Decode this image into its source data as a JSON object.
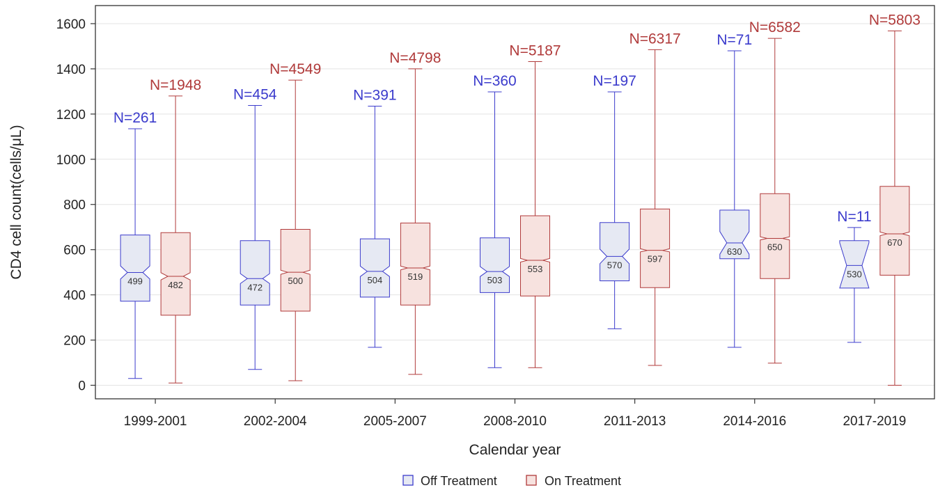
{
  "chart_data": {
    "type": "box",
    "xlabel": "Calendar year",
    "ylabel": "CD4 cell count(cells/μL)",
    "ylim": [
      -60,
      1680
    ],
    "yticks": [
      0,
      200,
      400,
      600,
      800,
      1000,
      1200,
      1400,
      1600
    ],
    "grid": true,
    "legend_position": "bottom",
    "categories": [
      "1999-2001",
      "2002-2004",
      "2005-2007",
      "2008-2010",
      "2011-2013",
      "2014-2016",
      "2017-2019"
    ],
    "series": [
      {
        "name": "Off Treatment",
        "color": "#3b3bcc",
        "fill": "#e6e9f3",
        "n_labels": [
          "N=261",
          "N=454",
          "N=391",
          "N=360",
          "N=197",
          "N=71",
          "N=11"
        ],
        "median_labels": [
          "499",
          "472",
          "504",
          "503",
          "570",
          "630",
          "530"
        ],
        "boxes": [
          {
            "min": 30,
            "q1": 372,
            "median": 499,
            "q3": 665,
            "max": 1135,
            "notch_low": 470,
            "notch_high": 528
          },
          {
            "min": 70,
            "q1": 355,
            "median": 472,
            "q3": 640,
            "max": 1238,
            "notch_low": 450,
            "notch_high": 494
          },
          {
            "min": 168,
            "q1": 390,
            "median": 504,
            "q3": 648,
            "max": 1235,
            "notch_low": 481,
            "notch_high": 527
          },
          {
            "min": 78,
            "q1": 410,
            "median": 503,
            "q3": 652,
            "max": 1298,
            "notch_low": 481,
            "notch_high": 525
          },
          {
            "min": 250,
            "q1": 462,
            "median": 570,
            "q3": 720,
            "max": 1298,
            "notch_low": 538,
            "notch_high": 602
          },
          {
            "min": 168,
            "q1": 560,
            "median": 630,
            "q3": 775,
            "max": 1480,
            "notch_low": 580,
            "notch_high": 680
          },
          {
            "min": 190,
            "q1": 430,
            "median": 530,
            "q3": 640,
            "max": 698,
            "notch_low": 430,
            "notch_high": 630
          }
        ]
      },
      {
        "name": "On Treatment",
        "color": "#b03a3a",
        "fill": "#f7e2df",
        "n_labels": [
          "N=1948",
          "N=4549",
          "N=4798",
          "N=5187",
          "N=6317",
          "N=6582",
          "N=5803"
        ],
        "median_labels": [
          "482",
          "500",
          "519",
          "553",
          "597",
          "650",
          "670"
        ],
        "boxes": [
          {
            "min": 10,
            "q1": 310,
            "median": 482,
            "q3": 675,
            "max": 1280,
            "notch_low": 466,
            "notch_high": 498
          },
          {
            "min": 20,
            "q1": 328,
            "median": 500,
            "q3": 690,
            "max": 1350,
            "notch_low": 491,
            "notch_high": 509
          },
          {
            "min": 48,
            "q1": 355,
            "median": 519,
            "q3": 718,
            "max": 1400,
            "notch_low": 511,
            "notch_high": 527
          },
          {
            "min": 78,
            "q1": 395,
            "median": 553,
            "q3": 750,
            "max": 1432,
            "notch_low": 545,
            "notch_high": 561
          },
          {
            "min": 88,
            "q1": 432,
            "median": 597,
            "q3": 780,
            "max": 1485,
            "notch_low": 590,
            "notch_high": 604
          },
          {
            "min": 98,
            "q1": 472,
            "median": 650,
            "q3": 848,
            "max": 1535,
            "notch_low": 643,
            "notch_high": 657
          },
          {
            "min": 0,
            "q1": 487,
            "median": 670,
            "q3": 880,
            "max": 1568,
            "notch_low": 662,
            "notch_high": 678
          }
        ]
      }
    ]
  }
}
